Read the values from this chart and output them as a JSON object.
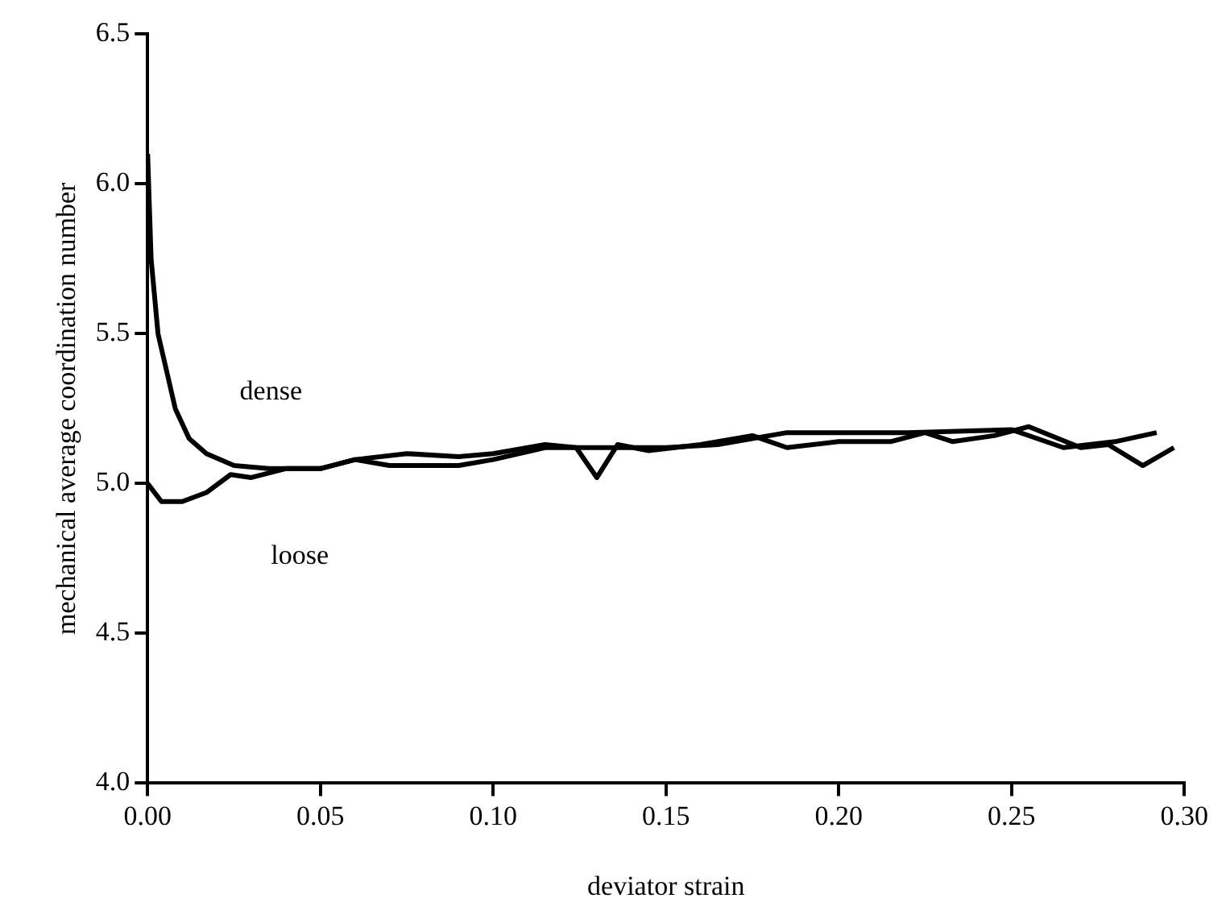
{
  "chart_data": {
    "type": "line",
    "xlabel": "deviator strain",
    "ylabel": "mechanical average coordination number",
    "xlim": [
      0,
      0.3
    ],
    "ylim": [
      4,
      6.5
    ],
    "xticks": [
      {
        "value": 0,
        "label": "0.00"
      },
      {
        "value": 0.05,
        "label": "0.05"
      },
      {
        "value": 0.1,
        "label": "0.10"
      },
      {
        "value": 0.15,
        "label": "0.15"
      },
      {
        "value": 0.2,
        "label": "0.20"
      },
      {
        "value": 0.25,
        "label": "0.25"
      },
      {
        "value": 0.3,
        "label": "0.30"
      }
    ],
    "yticks": [
      {
        "value": 4,
        "label": "4.0"
      },
      {
        "value": 4.5,
        "label": "4.5"
      },
      {
        "value": 5,
        "label": "5.0"
      },
      {
        "value": 5.5,
        "label": "5.5"
      },
      {
        "value": 6,
        "label": "6.0"
      },
      {
        "value": 6.5,
        "label": "6.5"
      }
    ],
    "grid": false,
    "legend": false,
    "marker": "none",
    "line_style": "solid",
    "series": [
      {
        "name": "dense",
        "color": "#000000",
        "x": [
          0,
          0.001,
          0.003,
          0.008,
          0.012,
          0.017,
          0.025,
          0.035,
          0.05,
          0.06,
          0.07,
          0.09,
          0.1,
          0.115,
          0.125,
          0.15,
          0.165,
          0.185,
          0.22,
          0.25,
          0.265,
          0.28,
          0.292
        ],
        "values": [
          6.1,
          5.75,
          5.5,
          5.25,
          5.15,
          5.1,
          5.06,
          5.05,
          5.05,
          5.08,
          5.06,
          5.06,
          5.08,
          5.12,
          5.12,
          5.12,
          5.13,
          5.17,
          5.17,
          5.18,
          5.12,
          5.14,
          5.17
        ]
      },
      {
        "name": "loose",
        "color": "#000000",
        "x": [
          0,
          0.004,
          0.01,
          0.017,
          0.024,
          0.03,
          0.04,
          0.05,
          0.06,
          0.075,
          0.09,
          0.1,
          0.115,
          0.124,
          0.13,
          0.136,
          0.145,
          0.16,
          0.175,
          0.185,
          0.2,
          0.215,
          0.225,
          0.233,
          0.245,
          0.255,
          0.27,
          0.278,
          0.288,
          0.297
        ],
        "values": [
          5.0,
          4.94,
          4.94,
          4.97,
          5.03,
          5.02,
          5.05,
          5.05,
          5.08,
          5.1,
          5.09,
          5.1,
          5.13,
          5.12,
          5.02,
          5.13,
          5.11,
          5.13,
          5.16,
          5.12,
          5.14,
          5.14,
          5.17,
          5.14,
          5.16,
          5.19,
          5.12,
          5.13,
          5.06,
          5.12
        ]
      }
    ]
  }
}
